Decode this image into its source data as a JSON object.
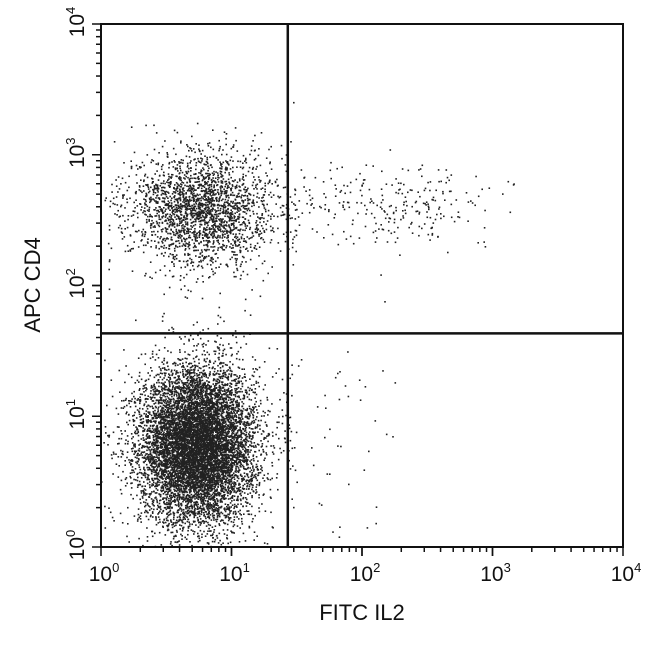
{
  "chart_data": {
    "type": "scatter",
    "title": "",
    "xlabel": "FITC IL2",
    "ylabel": "APC CD4",
    "x_scale": "log",
    "y_scale": "log",
    "xlim": [
      1,
      10000
    ],
    "ylim": [
      1,
      10000
    ],
    "x_ticks": [
      1,
      10,
      100,
      1000,
      10000
    ],
    "y_ticks": [
      1,
      10,
      100,
      1000,
      10000
    ],
    "x_tick_labels": [
      {
        "base": "10",
        "exp": "0"
      },
      {
        "base": "10",
        "exp": "1"
      },
      {
        "base": "10",
        "exp": "2"
      },
      {
        "base": "10",
        "exp": "3"
      },
      {
        "base": "10",
        "exp": "4"
      }
    ],
    "y_tick_labels": [
      {
        "base": "10",
        "exp": "0"
      },
      {
        "base": "10",
        "exp": "1"
      },
      {
        "base": "10",
        "exp": "2"
      },
      {
        "base": "10",
        "exp": "3"
      },
      {
        "base": "10",
        "exp": "4"
      }
    ],
    "grid": false,
    "legend": "none",
    "quadrant_gates": {
      "x": 27,
      "y": 43
    },
    "point_color": "#222222",
    "populations": [
      {
        "center_x": 5.5,
        "center_y": 6,
        "sd_log_x": 0.22,
        "sd_log_y": 0.3,
        "count": 9000
      },
      {
        "center_x": 6,
        "center_y": 380,
        "sd_log_x": 0.28,
        "sd_log_y": 0.22,
        "count": 2400
      },
      {
        "center_x": 180,
        "center_y": 420,
        "sd_log_x": 0.4,
        "sd_log_y": 0.15,
        "count": 260
      },
      {
        "center_x": 45,
        "center_y": 8,
        "sd_log_x": 0.3,
        "sd_log_y": 0.35,
        "count": 60
      }
    ],
    "points": [
      {
        "x": 290,
        "y": 830
      },
      {
        "x": 1200,
        "y": 500
      },
      {
        "x": 150,
        "y": 75
      },
      {
        "x": 180,
        "y": 18
      },
      {
        "x": 110,
        "y": 1.4
      },
      {
        "x": 60,
        "y": 1.3
      },
      {
        "x": 30,
        "y": 2
      },
      {
        "x": 78,
        "y": 31
      },
      {
        "x": 30,
        "y": 2500
      },
      {
        "x": 140,
        "y": 120
      }
    ]
  }
}
